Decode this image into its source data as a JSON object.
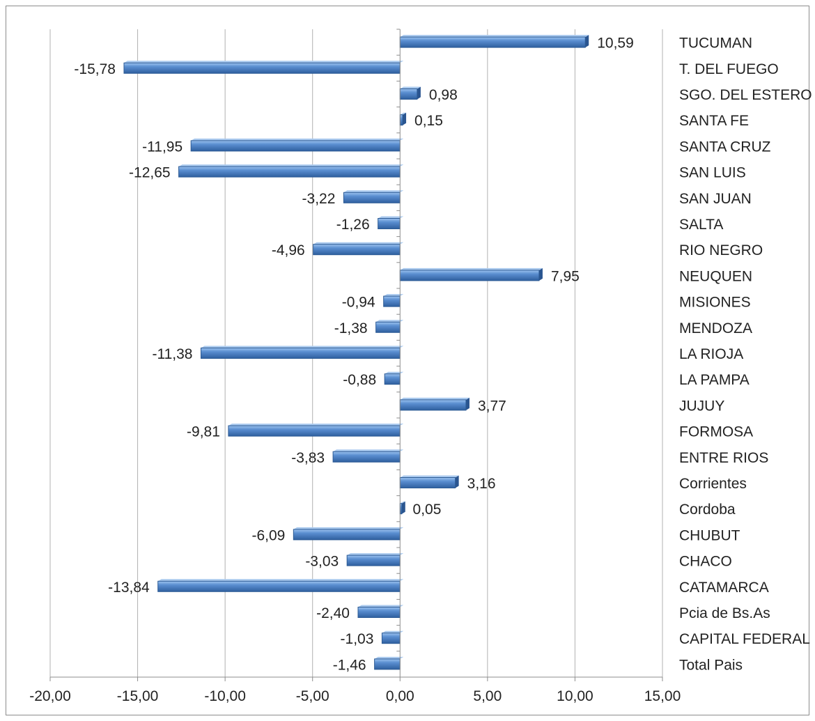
{
  "chart_data": {
    "type": "bar",
    "orientation": "horizontal",
    "categories": [
      "TUCUMAN",
      "T. DEL FUEGO",
      "SGO. DEL ESTERO",
      "SANTA FE",
      "SANTA CRUZ",
      "SAN LUIS",
      "SAN JUAN",
      "SALTA",
      "RIO NEGRO",
      "NEUQUEN",
      "MISIONES",
      "MENDOZA",
      "LA RIOJA",
      "LA PAMPA",
      "JUJUY",
      "FORMOSA",
      "ENTRE RIOS",
      "Corrientes",
      "Cordoba",
      "CHUBUT",
      "CHACO",
      "CATAMARCA",
      "Pcia de Bs.As",
      "CAPITAL FEDERAL",
      "Total Pais"
    ],
    "values": [
      10.59,
      -15.78,
      0.98,
      0.15,
      -11.95,
      -12.65,
      -3.22,
      -1.26,
      -4.96,
      7.95,
      -0.94,
      -1.38,
      -11.38,
      -0.88,
      3.77,
      -9.81,
      -3.83,
      3.16,
      0.05,
      -6.09,
      -3.03,
      -13.84,
      -2.4,
      -1.03,
      -1.46
    ],
    "value_labels": [
      "10,59",
      "-15,78",
      "0,98",
      "0,15",
      "-11,95",
      "-12,65",
      "-3,22",
      "-1,26",
      "-4,96",
      "7,95",
      "-0,94",
      "-1,38",
      "-11,38",
      "-0,88",
      "3,77",
      "-9,81",
      "-3,83",
      "3,16",
      "0,05",
      "-6,09",
      "-3,03",
      "-13,84",
      "-2,40",
      "-1,03",
      "-1,46"
    ],
    "xlim": [
      -20,
      15
    ],
    "xticks": [
      -20,
      -15,
      -10,
      -5,
      0,
      5,
      10,
      15
    ],
    "xtick_labels": [
      "-20,00",
      "-15,00",
      "-10,00",
      "-5,00",
      "0,00",
      "5,00",
      "10,00",
      "15,00"
    ],
    "grid": "vertical",
    "legend": "none",
    "category_axis_position": "right",
    "bar_color": "#4a7fc4",
    "bar_edge_color": "#2c5a94",
    "grid_color": "#b0b0b0"
  }
}
